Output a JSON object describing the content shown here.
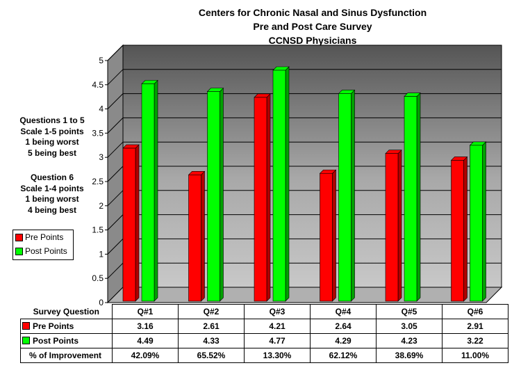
{
  "title_lines": [
    "Centers for Chronic Nasal and Sinus Dysfunction",
    "Pre and Post Care Survey",
    "CCNSD Physicians"
  ],
  "notes": {
    "group1": [
      "Questions 1 to 5",
      "Scale 1-5 points",
      "1 being worst",
      "5 being best"
    ],
    "group2": [
      "Question 6",
      "Scale 1-4 points",
      "1 being worst",
      "4 being best"
    ]
  },
  "legend": [
    "Pre Points",
    "Post Points"
  ],
  "colors": {
    "pre": "#ff0000",
    "post": "#00ff00"
  },
  "chart_data": {
    "type": "bar",
    "title": "Centers for Chronic Nasal and Sinus Dysfunction / Pre and Post Care Survey / CCNSD Physicians",
    "categories": [
      "Q#1",
      "Q#2",
      "Q#3",
      "Q#4",
      "Q#5",
      "Q#6"
    ],
    "series": [
      {
        "name": "Pre Points",
        "values": [
          3.16,
          2.61,
          4.21,
          2.64,
          3.05,
          2.91
        ]
      },
      {
        "name": "Post Points",
        "values": [
          4.49,
          4.33,
          4.77,
          4.29,
          4.23,
          3.22
        ]
      }
    ],
    "yticks": [
      "0",
      "0.5",
      "1",
      "1.5",
      "2",
      "2.5",
      "3",
      "3.5",
      "4",
      "4.5",
      "5"
    ],
    "ylim": [
      0,
      5
    ],
    "grid": true,
    "legend_position": "left"
  },
  "table": {
    "header_label": "Survey Question",
    "rows": [
      {
        "label": "Pre Points",
        "values": [
          "3.16",
          "2.61",
          "4.21",
          "2.64",
          "3.05",
          "2.91"
        ]
      },
      {
        "label": "Post Points",
        "values": [
          "4.49",
          "4.33",
          "4.77",
          "4.29",
          "4.23",
          "3.22"
        ]
      },
      {
        "label": "% of Improvement",
        "values": [
          "42.09%",
          "65.52%",
          "13.30%",
          "62.12%",
          "38.69%",
          "11.00%"
        ]
      }
    ]
  }
}
